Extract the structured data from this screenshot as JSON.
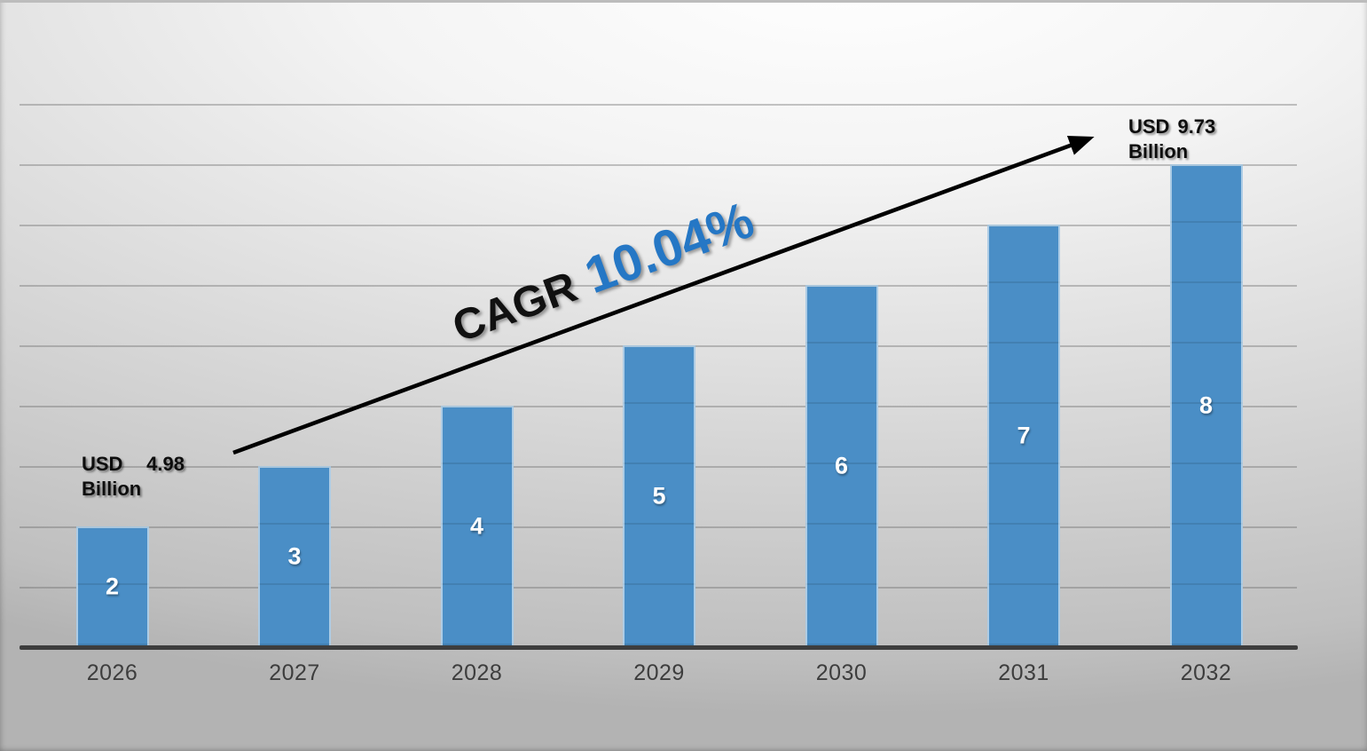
{
  "chart_data": {
    "type": "bar",
    "categories": [
      "2026",
      "2027",
      "2028",
      "2029",
      "2030",
      "2031",
      "2032"
    ],
    "values": [
      2,
      3,
      4,
      5,
      6,
      7,
      8
    ],
    "bar_labels": [
      "2",
      "3",
      "4",
      "5",
      "6",
      "7",
      "8"
    ],
    "title": "",
    "xlabel": "",
    "ylabel": "",
    "ylim": [
      0,
      9
    ],
    "grid": true,
    "grid_interval": 1,
    "y_axis_labels_visible": false,
    "legend": "none",
    "annotations": {
      "start_value_label": {
        "currency": "USD",
        "amount": "4.98",
        "unit": "Billion"
      },
      "end_value_label": {
        "currency": "USD",
        "amount": "9.73",
        "unit": "Billion"
      },
      "cagr_prefix": "CAGR",
      "cagr_value": "10.04%",
      "trend_arrow": "up-right"
    },
    "colors": {
      "bar": "#4a8ec6",
      "cagr_value_text": "#2577c5",
      "cagr_prefix_text": "#111111",
      "axis_line": "#3d3d3d",
      "x_tick_text": "#3d3d3d",
      "annotation_text": "#0d0d0d",
      "bar_label_text": "#ffffff",
      "arrow": "#000000"
    }
  }
}
